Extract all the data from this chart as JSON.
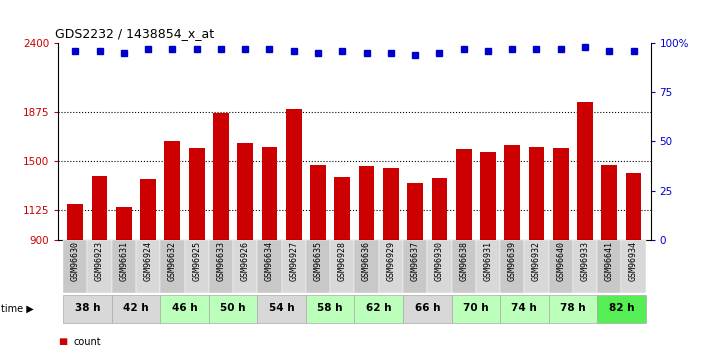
{
  "title": "GDS2232 / 1438854_x_at",
  "samples": [
    "GSM96630",
    "GSM96923",
    "GSM96631",
    "GSM96924",
    "GSM96632",
    "GSM96925",
    "GSM96633",
    "GSM96926",
    "GSM96634",
    "GSM96927",
    "GSM96635",
    "GSM96928",
    "GSM96636",
    "GSM96929",
    "GSM96637",
    "GSM96930",
    "GSM96638",
    "GSM96931",
    "GSM96639",
    "GSM96932",
    "GSM96640",
    "GSM96933",
    "GSM96641",
    "GSM96934"
  ],
  "counts": [
    1170,
    1390,
    1150,
    1360,
    1650,
    1600,
    1870,
    1640,
    1610,
    1900,
    1470,
    1380,
    1460,
    1450,
    1330,
    1370,
    1590,
    1570,
    1620,
    1610,
    1600,
    1950,
    1470,
    1410
  ],
  "percentiles": [
    96,
    96,
    95,
    97,
    97,
    97,
    97,
    97,
    97,
    96,
    95,
    96,
    95,
    95,
    94,
    95,
    97,
    96,
    97,
    97,
    97,
    98,
    96,
    96
  ],
  "time_groups": [
    {
      "label": "38 h",
      "start": 0,
      "end": 2,
      "color": "#d8d8d8"
    },
    {
      "label": "42 h",
      "start": 2,
      "end": 4,
      "color": "#d8d8d8"
    },
    {
      "label": "46 h",
      "start": 4,
      "end": 6,
      "color": "#bbffbb"
    },
    {
      "label": "50 h",
      "start": 6,
      "end": 8,
      "color": "#bbffbb"
    },
    {
      "label": "54 h",
      "start": 8,
      "end": 10,
      "color": "#d8d8d8"
    },
    {
      "label": "58 h",
      "start": 10,
      "end": 12,
      "color": "#bbffbb"
    },
    {
      "label": "62 h",
      "start": 12,
      "end": 14,
      "color": "#bbffbb"
    },
    {
      "label": "66 h",
      "start": 14,
      "end": 16,
      "color": "#d8d8d8"
    },
    {
      "label": "70 h",
      "start": 16,
      "end": 18,
      "color": "#bbffbb"
    },
    {
      "label": "74 h",
      "start": 18,
      "end": 20,
      "color": "#bbffbb"
    },
    {
      "label": "78 h",
      "start": 20,
      "end": 22,
      "color": "#bbffbb"
    },
    {
      "label": "82 h",
      "start": 22,
      "end": 24,
      "color": "#55ee55"
    }
  ],
  "bar_color": "#cc0000",
  "dot_color": "#0000cc",
  "ymin": 900,
  "ymax": 2400,
  "yticks": [
    900,
    1125,
    1500,
    1875,
    2400
  ],
  "ytick_labels": [
    "900",
    "1125",
    "1500",
    "1875",
    "2400"
  ],
  "right_yticks": [
    0,
    25,
    50,
    75,
    100
  ],
  "right_ytick_labels": [
    "0",
    "25",
    "50",
    "75",
    "100%"
  ],
  "hlines": [
    1125,
    1500,
    1875
  ]
}
